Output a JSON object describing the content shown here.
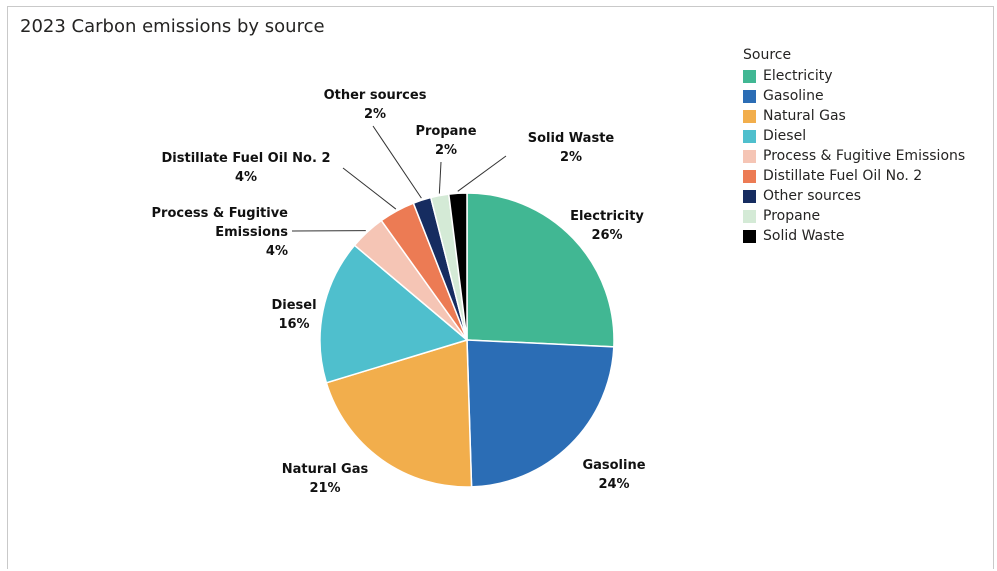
{
  "title": "2023 Carbon emissions by source",
  "legend": {
    "title": "Source"
  },
  "chart_data": {
    "type": "pie",
    "title": "2023 Carbon emissions by source",
    "legend_title": "Source",
    "legend_position": "top-right",
    "categories": [
      "Electricity",
      "Gasoline",
      "Natural Gas",
      "Diesel",
      "Process & Fugitive Emissions",
      "Distillate Fuel Oil No. 2",
      "Other sources",
      "Propane",
      "Solid Waste"
    ],
    "values": [
      26,
      24,
      21,
      16,
      4,
      4,
      2,
      2,
      2
    ],
    "percent_labels": [
      "26%",
      "24%",
      "21%",
      "16%",
      "4%",
      "4%",
      "2%",
      "2%",
      "2%"
    ],
    "colors": [
      "#41b793",
      "#2b6db5",
      "#f2ae4c",
      "#4fbfcd",
      "#f5c5b5",
      "#ec7b54",
      "#162c60",
      "#d4ead6",
      "#000000"
    ]
  }
}
